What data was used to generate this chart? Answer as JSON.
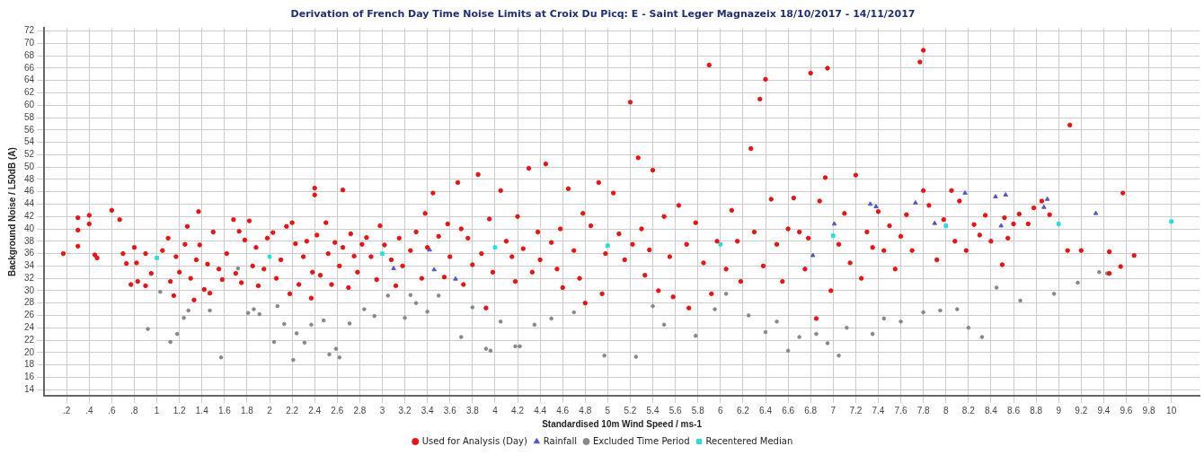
{
  "chart_data": {
    "type": "scatter",
    "title": "Derivation of French Day Time Noise Limits at Croix Du Picq: E - Saint Leger Magnazeix 18/10/2017 - 14/11/2017",
    "xlabel": "Standardised 10m Wind Speed / ms-1",
    "ylabel": "Background Noise / L50dB (A)",
    "xlim": [
      0,
      10.25
    ],
    "ylim": [
      13,
      72.5
    ],
    "xticks": [
      {
        "value": 0.2,
        "label": ".2"
      },
      {
        "value": 0.4,
        "label": ".4"
      },
      {
        "value": 0.6,
        "label": ".6"
      },
      {
        "value": 0.8,
        "label": ".8"
      },
      1,
      1.2,
      1.4,
      1.6,
      1.8,
      2,
      2.2,
      2.4,
      2.6,
      2.8,
      3,
      3.2,
      3.4,
      3.6,
      3.8,
      4,
      4.2,
      4.4,
      4.6,
      4.8,
      5,
      5.2,
      5.4,
      5.6,
      5.8,
      6,
      6.2,
      6.4,
      6.6,
      6.8,
      7,
      7.2,
      7.4,
      7.6,
      7.8,
      8,
      8.2,
      8.4,
      8.6,
      8.8,
      9,
      9.2,
      9.4,
      9.6,
      9.8,
      10
    ],
    "yticks": [
      14,
      16,
      18,
      20,
      22,
      24,
      26,
      28,
      30,
      32,
      34,
      36,
      38,
      40,
      42,
      44,
      46,
      48,
      50,
      52,
      54,
      56,
      58,
      60,
      62,
      64,
      66,
      68,
      70,
      72
    ],
    "grid": true,
    "legend": "bottom",
    "series": [
      {
        "name": "Used for Analysis (Day)",
        "color": "#ee1111",
        "marker": "circle",
        "x": [
          0.17,
          0.3,
          0.3,
          0.3,
          0.4,
          0.4,
          0.45,
          0.47,
          0.6,
          0.67,
          0.7,
          0.73,
          0.77,
          0.8,
          0.82,
          0.83,
          0.9,
          0.9,
          0.95,
          1.05,
          1.1,
          1.12,
          1.15,
          1.17,
          1.2,
          1.25,
          1.27,
          1.3,
          1.33,
          1.35,
          1.37,
          1.38,
          1.42,
          1.45,
          1.47,
          1.5,
          1.55,
          1.58,
          1.62,
          1.68,
          1.7,
          1.73,
          1.75,
          1.78,
          1.82,
          1.85,
          1.88,
          1.9,
          1.95,
          1.98,
          2.03,
          2.06,
          2.1,
          2.15,
          2.18,
          2.2,
          2.23,
          2.26,
          2.3,
          2.33,
          2.37,
          2.38,
          2.4,
          2.4,
          2.42,
          2.45,
          2.5,
          2.52,
          2.55,
          2.58,
          2.62,
          2.65,
          2.65,
          2.7,
          2.72,
          2.75,
          2.78,
          2.82,
          2.86,
          2.9,
          2.95,
          2.98,
          3.02,
          3.08,
          3.12,
          3.15,
          3.18,
          3.25,
          3.3,
          3.35,
          3.38,
          3.4,
          3.45,
          3.5,
          3.55,
          3.58,
          3.6,
          3.67,
          3.7,
          3.72,
          3.76,
          3.8,
          3.85,
          3.88,
          3.92,
          3.95,
          3.98,
          4.05,
          4.1,
          4.15,
          4.18,
          4.2,
          4.25,
          4.3,
          4.33,
          4.38,
          4.4,
          4.45,
          4.5,
          4.55,
          4.58,
          4.6,
          4.65,
          4.7,
          4.75,
          4.78,
          4.8,
          4.85,
          4.92,
          4.95,
          4.98,
          5.05,
          5.1,
          5.15,
          5.2,
          5.22,
          5.27,
          5.3,
          5.33,
          5.37,
          5.4,
          5.45,
          5.5,
          5.55,
          5.58,
          5.63,
          5.7,
          5.72,
          5.78,
          5.85,
          5.9,
          5.92,
          5.97,
          6.05,
          6.1,
          6.15,
          6.18,
          6.27,
          6.3,
          6.35,
          6.38,
          6.4,
          6.45,
          6.5,
          6.55,
          6.6,
          6.65,
          6.7,
          6.75,
          6.78,
          6.8,
          6.85,
          6.88,
          6.93,
          6.95,
          6.98,
          7.05,
          7.1,
          7.15,
          7.2,
          7.25,
          7.3,
          7.35,
          7.4,
          7.45,
          7.5,
          7.55,
          7.6,
          7.65,
          7.7,
          7.77,
          7.8,
          7.8,
          7.85,
          7.92,
          7.98,
          8.05,
          8.08,
          8.12,
          8.18,
          8.25,
          8.3,
          8.35,
          8.4,
          8.5,
          8.52,
          8.55,
          8.6,
          8.65,
          8.73,
          8.78,
          8.85,
          8.92,
          9.08,
          9.1,
          9.2,
          9.45,
          9.45,
          9.55,
          9.57,
          9.67
        ],
        "values": [
          36,
          41.8,
          39.8,
          37.2,
          42.2,
          40.8,
          35.8,
          35.3,
          43,
          41.5,
          36,
          34.4,
          31,
          37,
          34.5,
          31.5,
          36,
          30.8,
          32.8,
          36.5,
          38.5,
          31.5,
          29.2,
          35.5,
          33,
          37.5,
          40.4,
          32,
          28.5,
          35,
          42.8,
          37.4,
          30.2,
          34.3,
          29.6,
          39.5,
          33.5,
          31.8,
          36,
          41.5,
          32.8,
          39.6,
          31.3,
          38.2,
          41.3,
          34,
          37,
          30.8,
          33.5,
          38.5,
          39.4,
          32,
          35,
          40.4,
          29.5,
          41,
          37.6,
          31,
          35.5,
          38,
          28.8,
          33,
          46.6,
          45.5,
          39,
          32.5,
          41,
          36,
          31,
          37.8,
          34,
          37,
          46.3,
          30.5,
          39.2,
          35.6,
          33,
          37.5,
          38.6,
          35.5,
          31.8,
          40.5,
          37.4,
          35,
          30.8,
          38.5,
          34,
          36.5,
          39.5,
          32,
          42.5,
          37,
          45.8,
          38.8,
          32.2,
          40.8,
          35.5,
          47.5,
          40,
          31,
          38.5,
          34.2,
          48.8,
          36,
          27.2,
          41.6,
          33,
          46.2,
          38,
          35.5,
          31.5,
          42,
          36.8,
          49.8,
          33,
          39.5,
          35,
          50.5,
          37.8,
          33.5,
          40,
          30.5,
          46.5,
          36.5,
          32,
          42.5,
          28,
          40.5,
          47.5,
          29.5,
          36,
          45.8,
          39.2,
          35,
          60.5,
          37.5,
          51.5,
          40,
          32.5,
          36.6,
          49.5,
          30,
          42,
          35.5,
          29,
          43.8,
          37.5,
          27.2,
          41,
          34.5,
          66.5,
          29.5,
          38,
          33.5,
          43,
          38,
          31.5,
          53,
          39.5,
          61,
          34,
          64.2,
          44.8,
          37.5,
          31.5,
          40,
          45,
          39.5,
          33.5,
          38.5,
          65.2,
          25.5,
          44.5,
          48.3,
          66,
          30,
          37.5,
          42.5,
          34.5,
          48.7,
          32,
          39.5,
          37,
          42.8,
          36.5,
          40.5,
          33.5,
          38.8,
          42.3,
          36.5,
          67,
          68.9,
          46.2,
          43.8,
          35,
          41.5,
          46.2,
          38,
          44.5,
          36.5,
          40.7,
          39,
          42.2,
          38,
          34.2,
          41.8,
          38.5,
          40.8,
          42.4,
          40.8,
          43.4,
          44.5,
          42.3,
          36.5,
          56.8,
          36.5,
          36.3,
          32.8,
          33.9,
          45.8,
          35.7
        ]
      },
      {
        "name": "Rainfall",
        "color": "#5555cc",
        "marker": "triangle",
        "x": [
          3.1,
          3.42,
          3.46,
          3.65,
          6.82,
          7.01,
          7.33,
          7.38,
          7.73,
          7.9,
          8.17,
          8.44,
          8.49,
          8.53,
          8.87,
          8.9,
          9.33
        ],
        "values": [
          33.6,
          36.6,
          33.4,
          31.9,
          35.7,
          40.8,
          44,
          43.6,
          44.2,
          40.9,
          45.8,
          45.2,
          40.5,
          45.5,
          43.5,
          44.8,
          42.5
        ]
      },
      {
        "name": "Excluded Time Period",
        "color": "#888888",
        "marker": "circle",
        "x": [
          0.92,
          1.03,
          1.12,
          1.18,
          1.24,
          1.28,
          1.47,
          1.57,
          1.72,
          1.81,
          1.86,
          1.91,
          2.04,
          2.07,
          2.13,
          2.21,
          2.24,
          2.31,
          2.37,
          2.48,
          2.53,
          2.59,
          2.62,
          2.71,
          2.84,
          2.93,
          3.05,
          3.2,
          3.25,
          3.3,
          3.4,
          3.5,
          3.7,
          3.8,
          3.92,
          3.96,
          4.05,
          4.18,
          4.22,
          4.35,
          4.5,
          4.7,
          4.97,
          5.25,
          5.4,
          5.5,
          5.78,
          5.95,
          6.05,
          6.25,
          6.4,
          6.5,
          6.6,
          6.7,
          6.85,
          6.95,
          7.05,
          7.12,
          7.35,
          7.45,
          7.6,
          7.8,
          7.95,
          8.1,
          8.2,
          8.32,
          8.45,
          8.66,
          8.96,
          9.17,
          9.36,
          9.43
        ],
        "values": [
          23.8,
          29.8,
          21.7,
          23,
          25.6,
          26.8,
          26.8,
          19.2,
          33.6,
          26.4,
          27,
          26.2,
          21.7,
          27.5,
          24.6,
          18.8,
          23.1,
          21.6,
          24.5,
          25.2,
          19.7,
          20.6,
          19.2,
          24.7,
          27,
          25.9,
          29.2,
          25.6,
          29.3,
          28,
          26.6,
          29.2,
          22.5,
          27.3,
          20.6,
          20.3,
          25,
          21,
          21,
          24.5,
          25.5,
          26.5,
          19.5,
          19.3,
          27.5,
          24.5,
          22.7,
          27,
          29.5,
          26,
          23.3,
          25,
          20.3,
          22.5,
          23,
          21.5,
          19.5,
          24,
          23,
          25.5,
          25,
          26.5,
          26.8,
          27,
          24,
          22.5,
          30.5,
          28.4,
          29.5,
          31.3,
          33,
          32.8
        ]
      },
      {
        "name": "Recentered Median",
        "color": "#22e0e0",
        "marker": "square",
        "x": [
          1,
          2,
          3,
          4,
          5,
          6,
          7,
          8,
          9,
          10
        ],
        "values": [
          35.3,
          35.5,
          36,
          37,
          37.3,
          37.5,
          38.9,
          40.5,
          40.8,
          41.2
        ]
      }
    ]
  }
}
